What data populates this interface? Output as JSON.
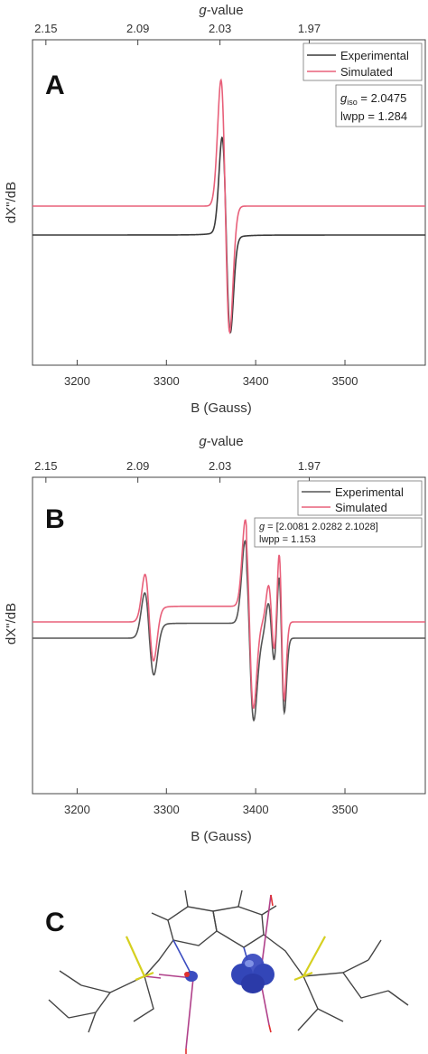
{
  "chart_data": [
    {
      "type": "line",
      "panel_label": "A",
      "xlabel": "B (Gauss)",
      "x2label_prefix": "g",
      "x2label_suffix": "-value",
      "ylabel": "dX\"/dB",
      "xlim": [
        3150,
        3590
      ],
      "xticks": [
        3200,
        3300,
        3400,
        3500
      ],
      "x2ticks": [
        "2.15",
        "2.09",
        "2.03",
        "1.97"
      ],
      "x2tick_positions": [
        3165,
        3268,
        3360,
        3460
      ],
      "series": [
        {
          "name": "Experimental",
          "color": "#3a3a3a"
        },
        {
          "name": "Simulated",
          "color": "#e8607a"
        }
      ],
      "annotation_lines": [
        {
          "sym": "g",
          "sub": "iso",
          "text": " = 2.0475"
        },
        {
          "sym": "",
          "sub": "",
          "text": "lwpp = 1.284"
        }
      ],
      "lines": [
        {
          "center": 3367,
          "width": 4.6,
          "amp": 1.0,
          "offset": 0.0
        }
      ]
    },
    {
      "type": "line",
      "panel_label": "B",
      "xlabel": "B (Gauss)",
      "x2label_prefix": "g",
      "x2label_suffix": "-value",
      "ylabel": "dX\"/dB",
      "xlim": [
        3150,
        3590
      ],
      "xticks": [
        3200,
        3300,
        3400,
        3500
      ],
      "x2ticks": [
        "2.15",
        "2.09",
        "2.03",
        "1.97"
      ],
      "x2tick_positions": [
        3165,
        3268,
        3360,
        3460
      ],
      "series": [
        {
          "name": "Experimental",
          "color": "#555555"
        },
        {
          "name": "Simulated",
          "color": "#e8607a"
        }
      ],
      "annotation_lines": [
        {
          "sym": "g",
          "sub": "",
          "text": " = [2.0081 2.0282 2.1028]"
        },
        {
          "sym": "",
          "sub": "",
          "text": "lwpp = 1.153"
        }
      ]
    }
  ],
  "panel_c": {
    "label": "C",
    "spin_density_color": "#3b4cc0"
  }
}
